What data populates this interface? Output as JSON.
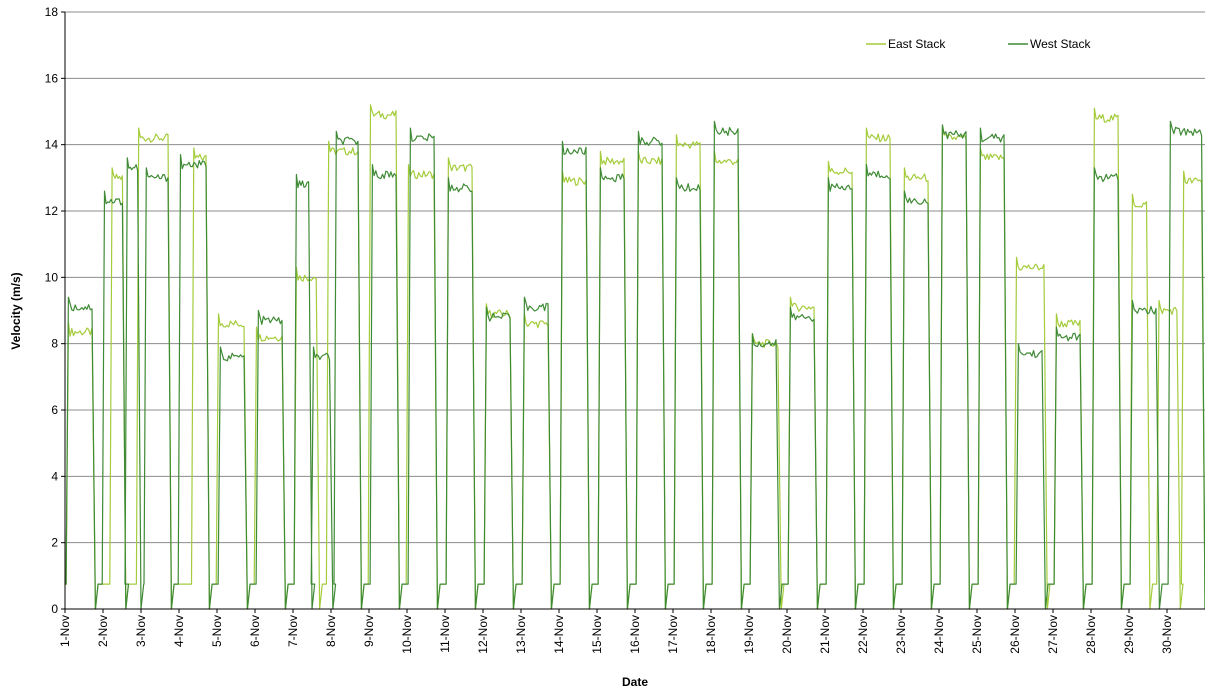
{
  "chart_data": {
    "type": "line",
    "title": "",
    "xlabel": "Date",
    "ylabel": "Velocity (m/s)",
    "ylim": [
      0,
      18
    ],
    "yticks": [
      0,
      2,
      4,
      6,
      8,
      10,
      12,
      14,
      16,
      18
    ],
    "xlim": [
      1,
      31
    ],
    "categories": [
      "1-Nov",
      "2-Nov",
      "3-Nov",
      "4-Nov",
      "5-Nov",
      "6-Nov",
      "7-Nov",
      "8-Nov",
      "9-Nov",
      "10-Nov",
      "11-Nov",
      "12-Nov",
      "13-Nov",
      "14-Nov",
      "15-Nov",
      "16-Nov",
      "17-Nov",
      "18-Nov",
      "19-Nov",
      "20-Nov",
      "21-Nov",
      "22-Nov",
      "23-Nov",
      "24-Nov",
      "25-Nov",
      "26-Nov",
      "27-Nov",
      "28-Nov",
      "29-Nov",
      "30-Nov"
    ],
    "grid": "horizontal",
    "legend_position": "top-right",
    "series": [
      {
        "name": "East Stack",
        "color": "#a4cc3c",
        "on_plateaus": [
          [
            1.05,
            1.75,
            8.35
          ],
          [
            2.2,
            2.55,
            13.0
          ],
          [
            2.9,
            3.75,
            14.2
          ],
          [
            4.35,
            4.75,
            13.6
          ],
          [
            5.0,
            5.75,
            8.6
          ],
          [
            6.0,
            6.75,
            8.2
          ],
          [
            7.05,
            7.65,
            10.0
          ],
          [
            7.9,
            8.75,
            13.8
          ],
          [
            9.0,
            9.75,
            14.9
          ],
          [
            10.0,
            10.75,
            13.1
          ],
          [
            11.05,
            11.75,
            13.3
          ],
          [
            12.05,
            12.75,
            8.9
          ],
          [
            13.05,
            13.75,
            8.6
          ],
          [
            14.05,
            14.75,
            12.9
          ],
          [
            15.05,
            15.75,
            13.5
          ],
          [
            16.05,
            16.75,
            13.5
          ],
          [
            17.05,
            17.75,
            14.0
          ],
          [
            18.05,
            18.75,
            13.5
          ],
          [
            19.05,
            19.8,
            8.0
          ],
          [
            20.05,
            20.75,
            9.1
          ],
          [
            21.05,
            21.75,
            13.2
          ],
          [
            22.05,
            22.75,
            14.2
          ],
          [
            23.05,
            23.75,
            13.0
          ],
          [
            24.05,
            24.75,
            14.2
          ],
          [
            25.05,
            25.75,
            13.6
          ],
          [
            26.0,
            26.8,
            10.3
          ],
          [
            27.05,
            27.75,
            8.6
          ],
          [
            28.05,
            28.75,
            14.8
          ],
          [
            29.05,
            29.5,
            12.2
          ],
          [
            29.75,
            30.3,
            9.0
          ],
          [
            30.4,
            30.95,
            12.9
          ]
        ],
        "off_level": 0.75
      },
      {
        "name": "West Stack",
        "color": "#3f8a35",
        "on_plateaus": [
          [
            1.05,
            1.75,
            9.1
          ],
          [
            2.0,
            2.55,
            12.3
          ],
          [
            2.6,
            2.95,
            13.3
          ],
          [
            3.1,
            3.75,
            13.0
          ],
          [
            4.0,
            4.75,
            13.4
          ],
          [
            5.05,
            5.75,
            7.6
          ],
          [
            6.05,
            6.75,
            8.7
          ],
          [
            7.05,
            7.45,
            12.8
          ],
          [
            7.5,
            8.0,
            7.6
          ],
          [
            8.1,
            8.75,
            14.1
          ],
          [
            9.05,
            9.75,
            13.1
          ],
          [
            10.05,
            10.75,
            14.2
          ],
          [
            11.05,
            11.75,
            12.7
          ],
          [
            12.05,
            12.75,
            8.8
          ],
          [
            13.05,
            13.75,
            9.1
          ],
          [
            14.05,
            14.75,
            13.8
          ],
          [
            15.05,
            15.75,
            13.0
          ],
          [
            16.05,
            16.75,
            14.1
          ],
          [
            17.05,
            17.75,
            12.7
          ],
          [
            18.05,
            18.75,
            14.4
          ],
          [
            19.05,
            19.75,
            8.0
          ],
          [
            20.05,
            20.75,
            8.8
          ],
          [
            21.05,
            21.75,
            12.7
          ],
          [
            22.05,
            22.75,
            13.1
          ],
          [
            23.05,
            23.75,
            12.3
          ],
          [
            24.05,
            24.75,
            14.3
          ],
          [
            25.05,
            25.75,
            14.2
          ],
          [
            26.05,
            26.75,
            7.7
          ],
          [
            27.05,
            27.75,
            8.2
          ],
          [
            28.05,
            28.75,
            13.0
          ],
          [
            29.05,
            29.75,
            9.0
          ],
          [
            30.05,
            30.95,
            14.4
          ]
        ],
        "off_level": 0.75
      }
    ]
  }
}
